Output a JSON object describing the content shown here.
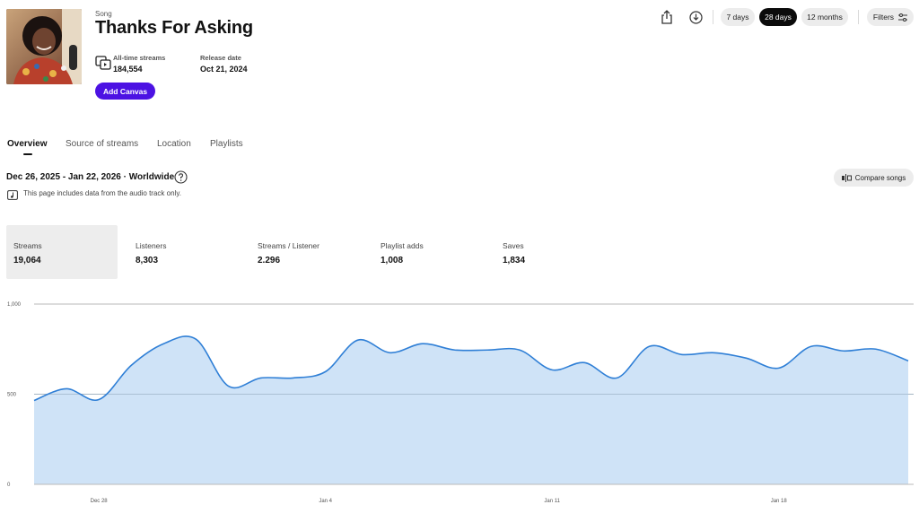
{
  "song": {
    "kind_label": "Song",
    "title": "Thanks For Asking",
    "alltime_label": "All-time streams",
    "alltime_value": "184,554",
    "release_label": "Release date",
    "release_value": "Oct 21, 2024",
    "canvas_button": "Add Canvas"
  },
  "toolbar": {
    "share_icon": "share-icon",
    "download_icon": "download-icon",
    "ranges": [
      "7 days",
      "28 days",
      "12 months"
    ],
    "active_range": "28 days",
    "filters_label": "Filters"
  },
  "tabs": [
    "Overview",
    "Source of streams",
    "Location",
    "Playlists"
  ],
  "active_tab": "Overview",
  "context": {
    "range_text": "Dec 26, 2025 - Jan 22, 2026 · Worldwide",
    "note": "This page includes data from the audio track only.",
    "compare_label": "Compare songs"
  },
  "metrics": [
    {
      "label": "Streams",
      "value": "19,064"
    },
    {
      "label": "Listeners",
      "value": "8,303"
    },
    {
      "label": "Streams / Listener",
      "value": "2.296"
    },
    {
      "label": "Playlist adds",
      "value": "1,008"
    },
    {
      "label": "Saves",
      "value": "1,834"
    }
  ],
  "active_metric": "Streams",
  "colors": {
    "accent": "#4c12e3",
    "series_line": "#2f7fd6",
    "series_fill": "#cfe3f7"
  },
  "chart_data": {
    "type": "area",
    "metric": "Streams",
    "x_tick_labels": [
      "Dec 28",
      "Jan 4",
      "Jan 11",
      "Jan 18"
    ],
    "x_tick_indices": [
      2,
      9,
      16,
      23
    ],
    "y_ticks": [
      0,
      500,
      1000
    ],
    "y_tick_labels": [
      "0",
      "500",
      "1,000"
    ],
    "ylim": [
      0,
      1000
    ],
    "grid": true,
    "series": [
      {
        "values": [
          465,
          530,
          470,
          660,
          780,
          805,
          545,
          590,
          590,
          625,
          800,
          730,
          780,
          745,
          745,
          745,
          635,
          675,
          590,
          765,
          720,
          730,
          700,
          645,
          765,
          740,
          750,
          685
        ]
      }
    ]
  }
}
